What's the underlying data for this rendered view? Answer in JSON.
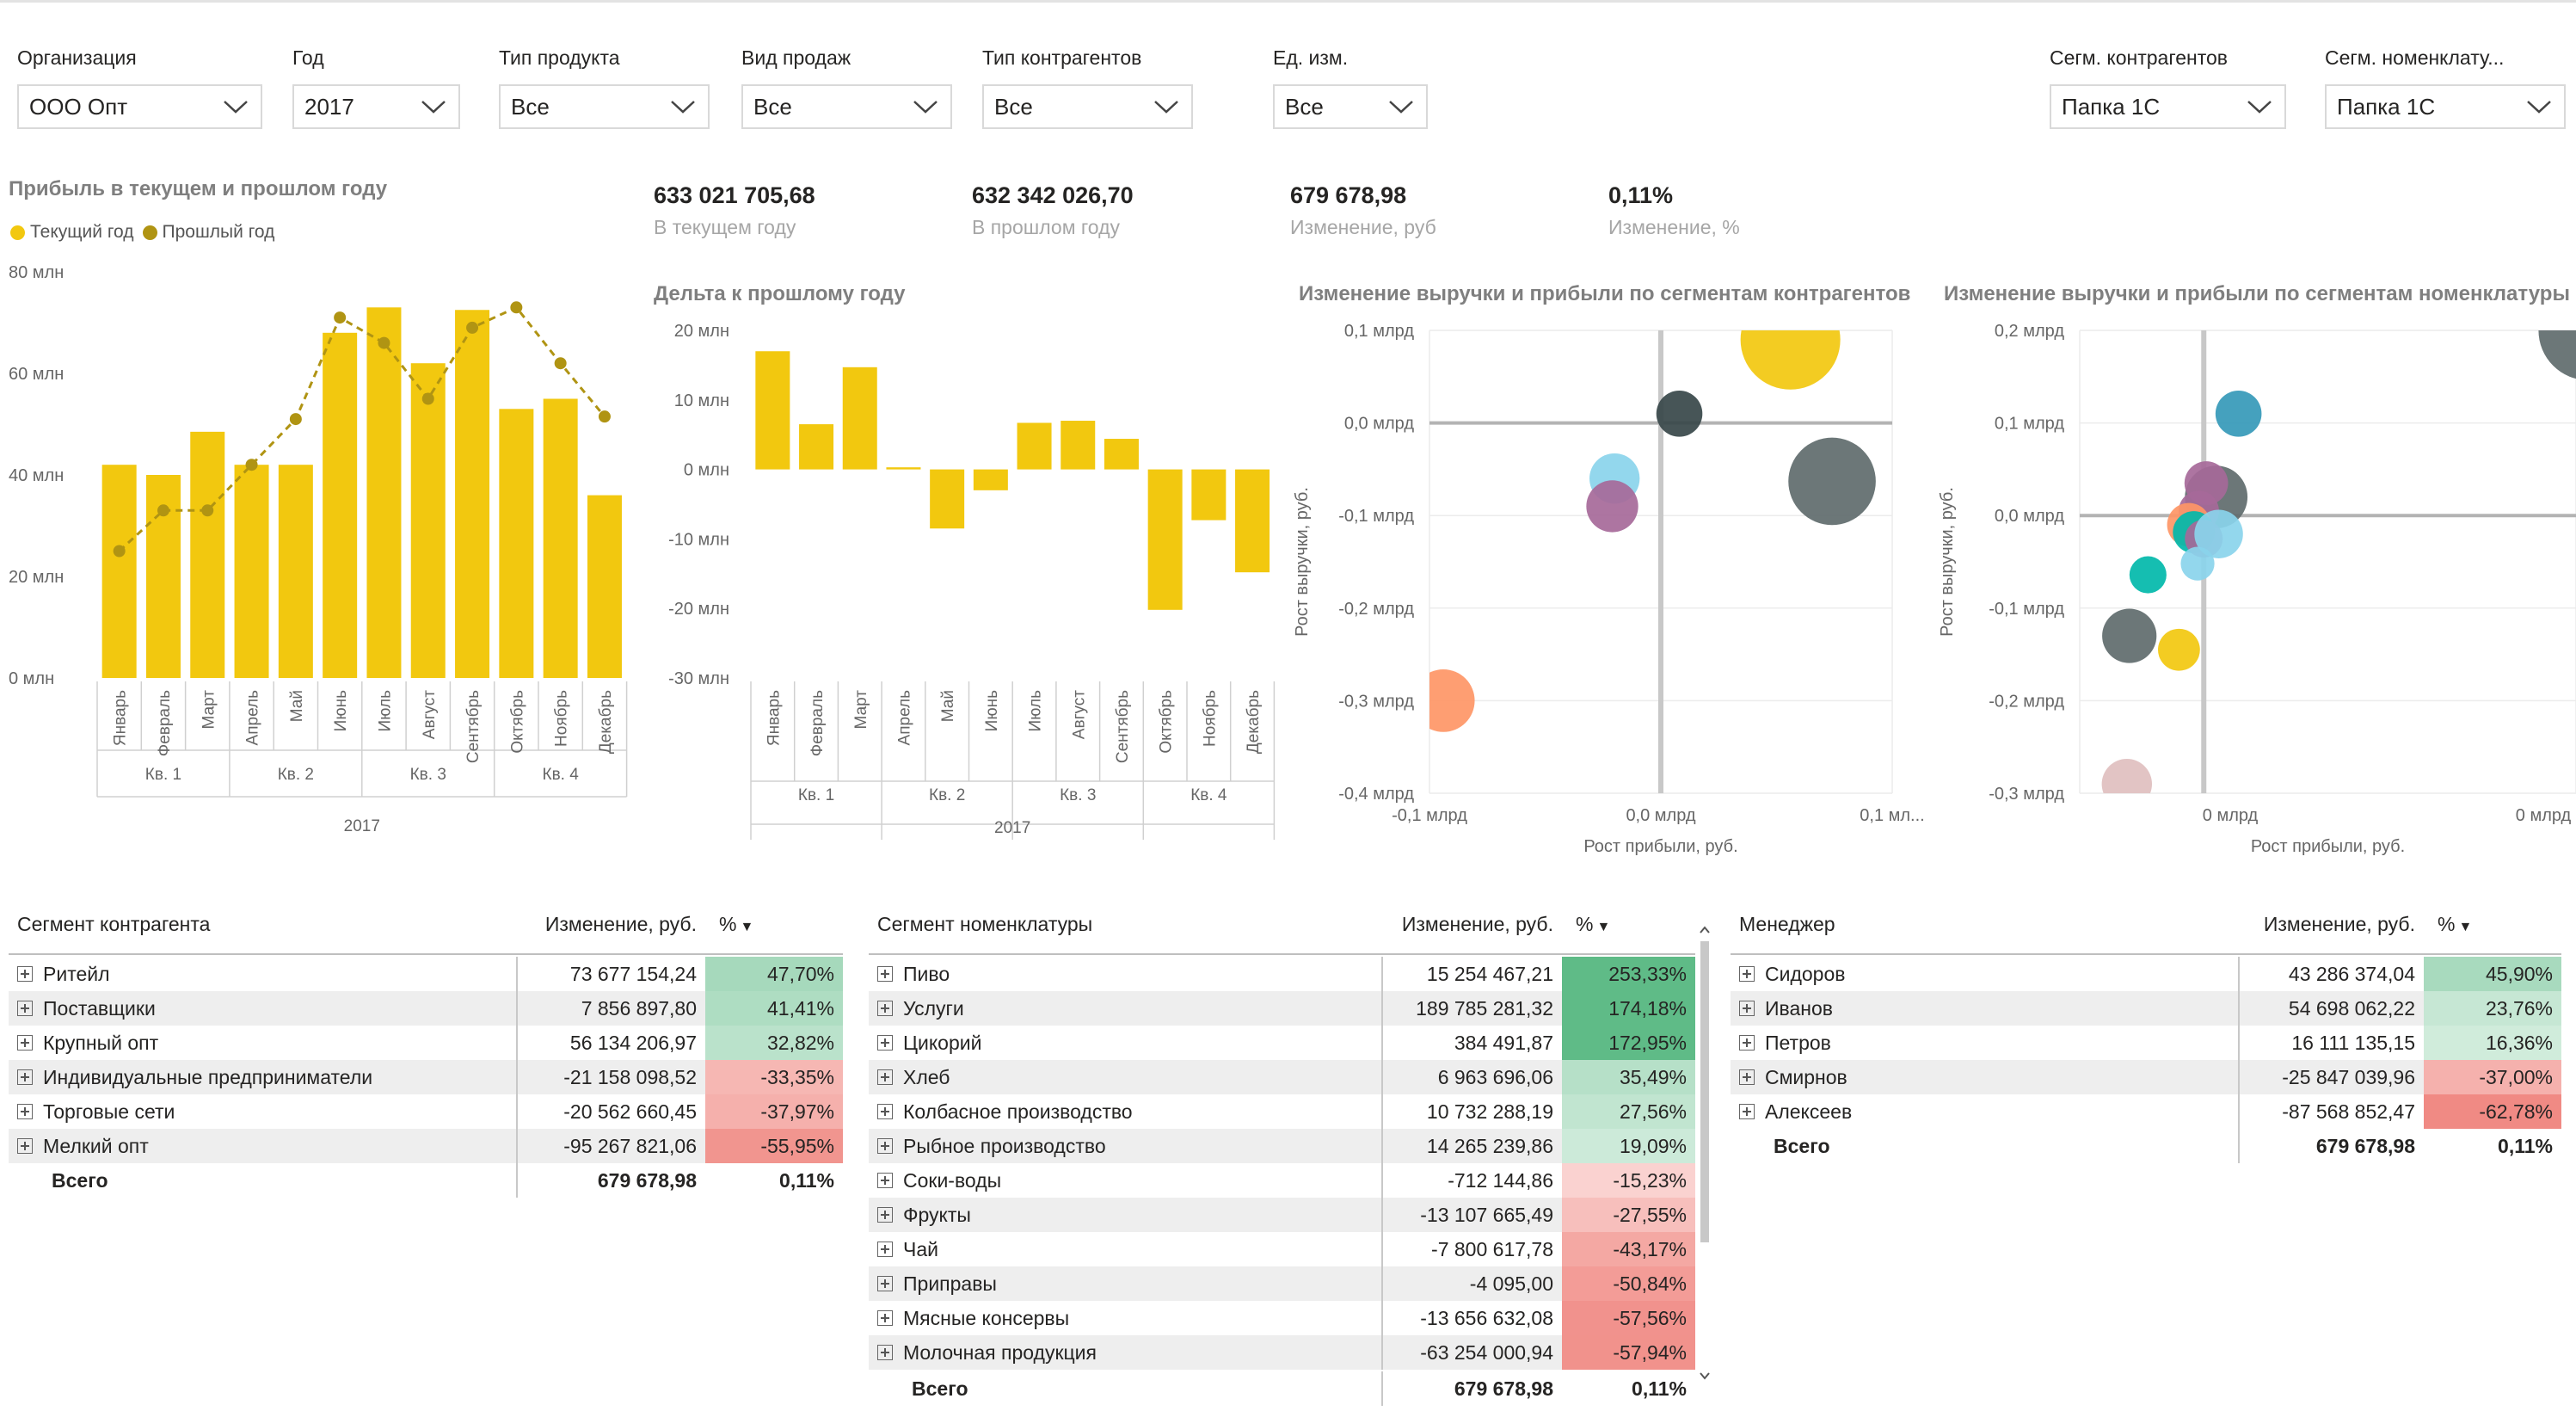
{
  "filters": [
    {
      "label": "Организация",
      "value": "ООО Опт"
    },
    {
      "label": "Год",
      "value": "2017"
    },
    {
      "label": "Тип продукта",
      "value": "Все"
    },
    {
      "label": "Вид продаж",
      "value": "Все"
    },
    {
      "label": "Тип контрагентов",
      "value": "Все"
    },
    {
      "label": "Ед. изм.",
      "value": "Все"
    },
    {
      "label": "Сегм. контрагентов",
      "value": "Папка 1С"
    },
    {
      "label": "Сегм. номенклату...",
      "value": "Папка 1С"
    }
  ],
  "kpis": [
    {
      "value": "633 021 705,68",
      "label": "В текущем году"
    },
    {
      "value": "632 342 026,70",
      "label": "В прошлом году"
    },
    {
      "value": "679 678,98",
      "label": "Изменение, руб"
    },
    {
      "value": "0,11%",
      "label": "Изменение, %"
    }
  ],
  "colors": {
    "current": "#f2c80f",
    "previous": "#b09413",
    "negative": "#f08a84",
    "positive": "#5fbb87"
  },
  "profit_chart": {
    "title": "Прибыль в текущем и прошлом году",
    "legend": [
      "Текущий год",
      "Прошлый год"
    ],
    "yticks": [
      "80 млн",
      "60 млн",
      "40 млн",
      "20 млн",
      "0 млн"
    ],
    "months": [
      "Январь",
      "Февраль",
      "Март",
      "Апрель",
      "Май",
      "Июнь",
      "Июль",
      "Август",
      "Сентябрь",
      "Октябрь",
      "Ноябрь",
      "Декабрь"
    ],
    "quarters": [
      "Кв. 1",
      "Кв. 2",
      "Кв. 3",
      "Кв. 4"
    ],
    "year": "2017"
  },
  "delta_chart": {
    "title": "Дельта к прошлому году",
    "yticks": [
      "20 млн",
      "10 млн",
      "0 млн",
      "-10 млн",
      "-20 млн",
      "-30 млн"
    ]
  },
  "scatter_contr": {
    "title": "Изменение выручки и прибыли по сегментам контрагентов",
    "yticks": [
      "0,1 млрд",
      "0,0 млрд",
      "-0,1 млрд",
      "-0,2 млрд",
      "-0,3 млрд",
      "-0,4 млрд"
    ],
    "xticks": [
      "-0,1 млрд",
      "0,0 млрд",
      "0,1 мл..."
    ],
    "xlabel": "Рост прибыли, руб.",
    "ylabel": "Рост выручки, руб."
  },
  "scatter_nom": {
    "title": "Изменение выручки и прибыли по сегментам номенклатуры",
    "yticks": [
      "0,2 млрд",
      "0,1 млрд",
      "0,0 млрд",
      "-0,1 млрд",
      "-0,2 млрд",
      "-0,3 млрд"
    ],
    "xticks": [
      "0 млрд",
      "0 млрд"
    ],
    "xlabel": "Рост прибыли, руб.",
    "ylabel": "Рост выручки, руб."
  },
  "chart_data": [
    {
      "type": "bar",
      "title": "Прибыль в текущем и прошлом году",
      "categories": [
        "Январь",
        "Февраль",
        "Март",
        "Апрель",
        "Май",
        "Июнь",
        "Июль",
        "Август",
        "Сентябрь",
        "Октябрь",
        "Ноябрь",
        "Декабрь"
      ],
      "series": [
        {
          "name": "Текущий год",
          "values": [
            42,
            40,
            48.5,
            42,
            42,
            68,
            73,
            62,
            72.5,
            53,
            55,
            36
          ]
        },
        {
          "name": "Прошлый год",
          "values": [
            25,
            33,
            33,
            42,
            51,
            71,
            66,
            55,
            69,
            73,
            62,
            51.5
          ]
        }
      ],
      "ylim": [
        0,
        80
      ]
    },
    {
      "type": "bar",
      "title": "Дельта к прошлому году",
      "categories": [
        "Январь",
        "Февраль",
        "Март",
        "Апрель",
        "Май",
        "Июнь",
        "Июль",
        "Август",
        "Сентябрь",
        "Октябрь",
        "Ноябрь",
        "Декабрь"
      ],
      "values": [
        17,
        6.5,
        14.7,
        0.3,
        -8.5,
        -3,
        6.7,
        7,
        4.4,
        -20.2,
        -7.3,
        -14.8
      ],
      "ylim": [
        -30,
        20
      ]
    },
    {
      "type": "scatter",
      "title": "Изменение выручки и прибыли по сегментам контрагентов",
      "xlabel": "Рост прибыли, руб.",
      "ylabel": "Рост выручки, руб.",
      "xlim": [
        -0.1,
        0.1
      ],
      "ylim": [
        -0.4,
        0.1
      ],
      "points": [
        {
          "x": 0.056,
          "y": 0.09,
          "size": 1.0,
          "color": "#f2c80f"
        },
        {
          "x": 0.008,
          "y": 0.01,
          "size": 0.35,
          "color": "#374649"
        },
        {
          "x": -0.02,
          "y": -0.06,
          "size": 0.4,
          "color": "#8ad4eb"
        },
        {
          "x": -0.021,
          "y": -0.09,
          "size": 0.42,
          "color": "#a66999"
        },
        {
          "x": 0.074,
          "y": -0.063,
          "size": 0.85,
          "color": "#5f6b6d"
        },
        {
          "x": -0.094,
          "y": -0.3,
          "size": 0.55,
          "color": "#fe9666"
        }
      ]
    },
    {
      "type": "scatter",
      "title": "Изменение выручки и прибыли по сегментам номенклатуры",
      "xlabel": "Рост прибыли, руб.",
      "ylabel": "Рост выручки, руб.",
      "xlim": [
        -0.1,
        0.3
      ],
      "ylim": [
        -0.3,
        0.2
      ],
      "points": [
        {
          "x": 0.31,
          "y": 0.2,
          "size": 1.0,
          "color": "#5f6b6d"
        },
        {
          "x": 0.028,
          "y": 0.11,
          "size": 0.35,
          "color": "#3599b8"
        },
        {
          "x": 0.01,
          "y": 0.02,
          "size": 0.55,
          "color": "#5f6b6d"
        },
        {
          "x": 0.002,
          "y": 0.035,
          "size": 0.32,
          "color": "#a66999"
        },
        {
          "x": -0.004,
          "y": 0.005,
          "size": 0.28,
          "color": "#a66999"
        },
        {
          "x": -0.012,
          "y": -0.01,
          "size": 0.32,
          "color": "#fe9666"
        },
        {
          "x": -0.008,
          "y": -0.018,
          "size": 0.3,
          "color": "#01b8aa"
        },
        {
          "x": 0.0,
          "y": -0.025,
          "size": 0.25,
          "color": "#a66999"
        },
        {
          "x": 0.012,
          "y": -0.02,
          "size": 0.38,
          "color": "#8ad4eb"
        },
        {
          "x": -0.005,
          "y": -0.052,
          "size": 0.2,
          "color": "#8ad4eb"
        },
        {
          "x": -0.045,
          "y": -0.064,
          "size": 0.24,
          "color": "#01b8aa"
        },
        {
          "x": -0.06,
          "y": -0.13,
          "size": 0.45,
          "color": "#5f6b6d"
        },
        {
          "x": -0.02,
          "y": -0.145,
          "size": 0.3,
          "color": "#f2c80f"
        },
        {
          "x": -0.062,
          "y": -0.29,
          "size": 0.4,
          "color": "#dfbfbf"
        }
      ]
    }
  ],
  "tables": [
    {
      "headers": [
        "Сегмент контрагента",
        "Изменение, руб.",
        "%"
      ],
      "rows": [
        {
          "name": "Ритейл",
          "value": "73 677 154,24",
          "pct": "47,70%",
          "p": 47.7
        },
        {
          "name": "Поставщики",
          "value": "7 856 897,80",
          "pct": "41,41%",
          "p": 41.41
        },
        {
          "name": "Крупный опт",
          "value": "56 134 206,97",
          "pct": "32,82%",
          "p": 32.82
        },
        {
          "name": "Индивидуальные предприниматели",
          "value": "-21 158 098,52",
          "pct": "-33,35%",
          "p": -33.35
        },
        {
          "name": "Торговые сети",
          "value": "-20 562 660,45",
          "pct": "-37,97%",
          "p": -37.97
        },
        {
          "name": "Мелкий опт",
          "value": "-95 267 821,06",
          "pct": "-55,95%",
          "p": -55.95
        }
      ],
      "total": {
        "name": "Всего",
        "value": "679 678,98",
        "pct": "0,11%"
      }
    },
    {
      "headers": [
        "Сегмент номенклатуры",
        "Изменение, руб.",
        "%"
      ],
      "rows": [
        {
          "name": "Пиво",
          "value": "15 254 467,21",
          "pct": "253,33%",
          "p": 253.33
        },
        {
          "name": "Услуги",
          "value": "189 785 281,32",
          "pct": "174,18%",
          "p": 174.18
        },
        {
          "name": "Цикорий",
          "value": "384 491,87",
          "pct": "172,95%",
          "p": 172.95
        },
        {
          "name": "Хлеб",
          "value": "6 963 696,06",
          "pct": "35,49%",
          "p": 35.49
        },
        {
          "name": "Колбасное производство",
          "value": "10 732 288,19",
          "pct": "27,56%",
          "p": 27.56
        },
        {
          "name": "Рыбное производство",
          "value": "14 265 239,86",
          "pct": "19,09%",
          "p": 19.09
        },
        {
          "name": "Соки-воды",
          "value": "-712 144,86",
          "pct": "-15,23%",
          "p": -15.23
        },
        {
          "name": "Фрукты",
          "value": "-13 107 665,49",
          "pct": "-27,55%",
          "p": -27.55
        },
        {
          "name": "Чай",
          "value": "-7 800 617,78",
          "pct": "-43,17%",
          "p": -43.17
        },
        {
          "name": "Приправы",
          "value": "-4 095,00",
          "pct": "-50,84%",
          "p": -50.84
        },
        {
          "name": "Мясные консервы",
          "value": "-13 656 632,08",
          "pct": "-57,56%",
          "p": -57.56
        },
        {
          "name": "Молочная продукция",
          "value": "-63 254 000,94",
          "pct": "-57,94%",
          "p": -57.94
        }
      ],
      "total": {
        "name": "Всего",
        "value": "679 678,98",
        "pct": "0,11%"
      }
    },
    {
      "headers": [
        "Менеджер",
        "Изменение, руб.",
        "%"
      ],
      "rows": [
        {
          "name": "Сидоров",
          "value": "43 286 374,04",
          "pct": "45,90%",
          "p": 45.9
        },
        {
          "name": "Иванов",
          "value": "54 698 062,22",
          "pct": "23,76%",
          "p": 23.76
        },
        {
          "name": "Петров",
          "value": "16 111 135,15",
          "pct": "16,36%",
          "p": 16.36
        },
        {
          "name": "Смирнов",
          "value": "-25 847 039,96",
          "pct": "-37,00%",
          "p": -37.0
        },
        {
          "name": "Алексеев",
          "value": "-87 568 852,47",
          "pct": "-62,78%",
          "p": -62.78
        }
      ],
      "total": {
        "name": "Всего",
        "value": "679 678,98",
        "pct": "0,11%"
      }
    }
  ]
}
